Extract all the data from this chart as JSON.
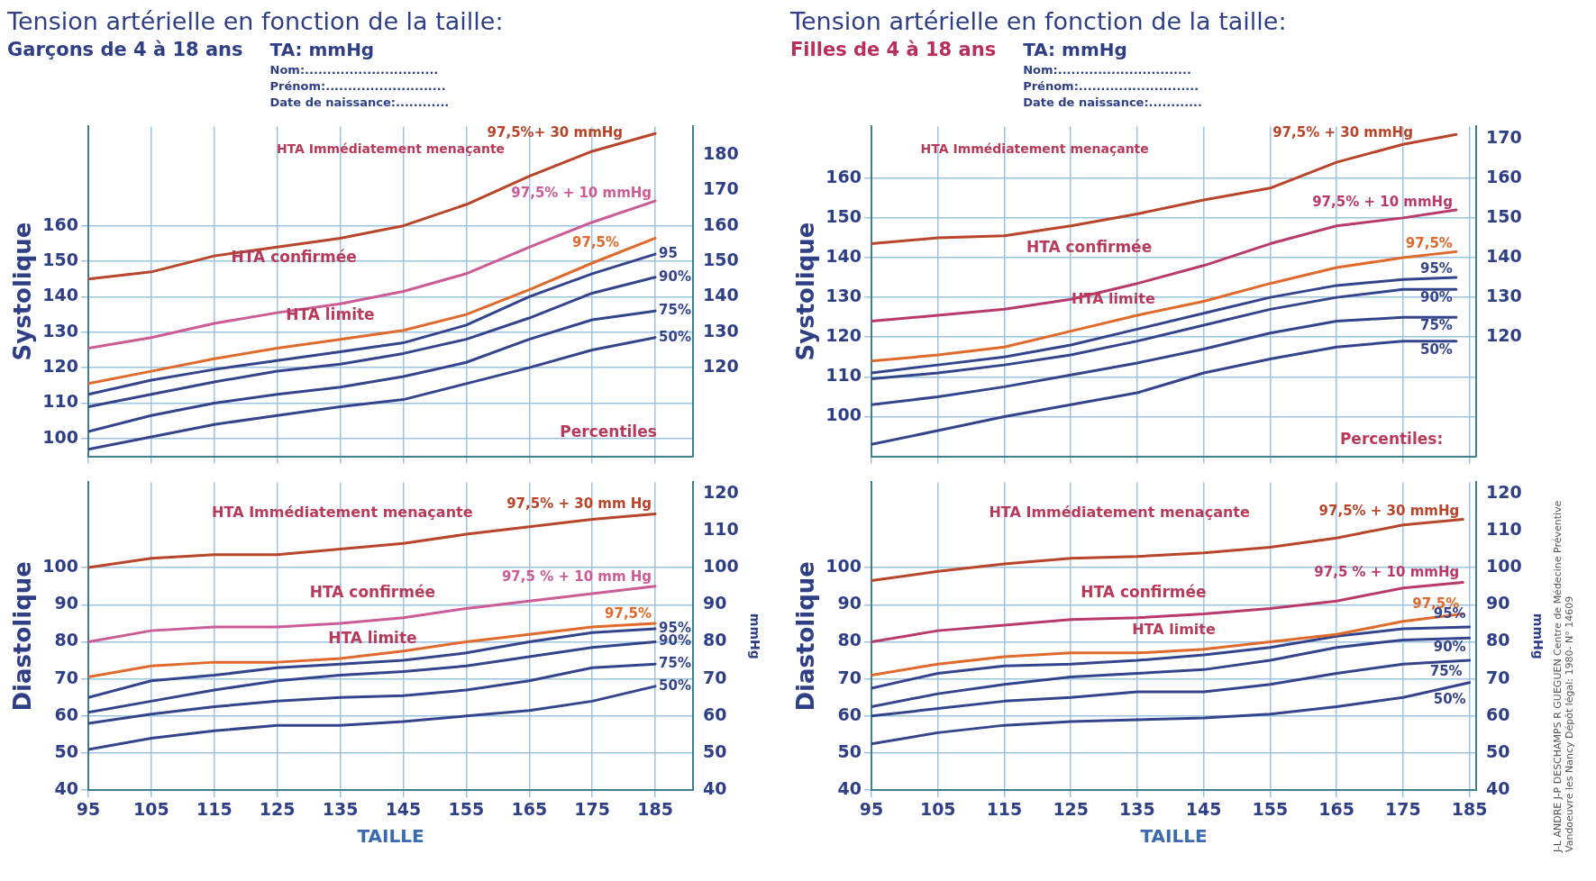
{
  "chart_data": [
    {
      "type": "line",
      "title": "Tension artérielle en fonction de la taille:",
      "subtitle": "Garçons de 4 à 18 ans",
      "ylabel": "Systolique",
      "annotations": [
        "TA: mmHg",
        "Nom:..............................",
        "Prénom:...........................",
        "Date de naissance:............",
        "HTA Immédiatement menaçante",
        "HTA confirmée",
        "HTA limite",
        "Percentiles"
      ],
      "xlim": [
        95,
        191
      ],
      "xticks": [
        95,
        105,
        115,
        125,
        135,
        145,
        155,
        165,
        175,
        185
      ],
      "ylim": [
        95,
        188
      ],
      "yticks": [
        100,
        110,
        120,
        130,
        140,
        150,
        160
      ],
      "y2lim": [
        95,
        188
      ],
      "y2ticks": [
        120,
        130,
        140,
        150,
        160,
        170,
        180
      ],
      "tick_labels": "y",
      "grid": true,
      "legend": false,
      "marker": "none",
      "series": [
        {
          "name": "97,5%+ 30 mmHg",
          "color": "#b8452a",
          "x": [
            95,
            105,
            115,
            125,
            135,
            145,
            155,
            165,
            175,
            185
          ],
          "values": [
            145,
            147,
            151.5,
            154,
            156.5,
            160,
            166,
            174,
            181,
            186
          ]
        },
        {
          "name": "97,5% + 10 mmHg",
          "color": "#cc5c96",
          "x": [
            95,
            105,
            115,
            125,
            135,
            145,
            155,
            165,
            175,
            185
          ],
          "values": [
            125.5,
            128.5,
            132.5,
            135.5,
            138,
            141.5,
            146.5,
            154,
            161,
            167
          ]
        },
        {
          "name": "97,5%",
          "color": "#e06a2c",
          "x": [
            95,
            105,
            115,
            125,
            135,
            145,
            155,
            165,
            175,
            185
          ],
          "values": [
            115.5,
            119,
            122.5,
            125.5,
            128,
            130.5,
            135,
            142,
            149.5,
            156.5
          ]
        },
        {
          "name": "95",
          "color": "#34448c",
          "x": [
            95,
            105,
            115,
            125,
            135,
            145,
            155,
            165,
            175,
            185
          ],
          "values": [
            112.5,
            116.5,
            119.5,
            122,
            124.5,
            127,
            132,
            140,
            146.5,
            152
          ]
        },
        {
          "name": "90%",
          "color": "#34448c",
          "x": [
            95,
            105,
            115,
            125,
            135,
            145,
            155,
            165,
            175,
            185
          ],
          "values": [
            109,
            112.5,
            116,
            119,
            121,
            124,
            128,
            134,
            141,
            145.5
          ]
        },
        {
          "name": "75%",
          "color": "#34448c",
          "x": [
            95,
            105,
            115,
            125,
            135,
            145,
            155,
            165,
            175,
            185
          ],
          "values": [
            102,
            106.5,
            110,
            112.5,
            114.5,
            117.5,
            121.5,
            128,
            133.5,
            136
          ]
        },
        {
          "name": "50%",
          "color": "#34448c",
          "x": [
            95,
            105,
            115,
            125,
            135,
            145,
            155,
            165,
            175,
            185
          ],
          "values": [
            97,
            100.5,
            104,
            106.5,
            109,
            111,
            115.5,
            120,
            125,
            128.5
          ]
        }
      ]
    },
    {
      "type": "line",
      "xlabel": "TAILLE",
      "ylabel": "Diastolique",
      "y2label": "mmHg",
      "annotations": [
        "HTA Immédiatement menaçante",
        "HTA confirmée",
        "HTA limite"
      ],
      "xlim": [
        95,
        191
      ],
      "xticks": [
        95,
        105,
        115,
        125,
        135,
        145,
        155,
        165,
        175,
        185
      ],
      "ylim": [
        40,
        123
      ],
      "yticks": [
        40,
        50,
        60,
        70,
        80,
        90,
        100
      ],
      "y2lim": [
        40,
        123
      ],
      "y2ticks": [
        40,
        50,
        60,
        70,
        80,
        90,
        100,
        110,
        120
      ],
      "grid": true,
      "legend": false,
      "marker": "none",
      "series": [
        {
          "name": "97,5% + 30 mm Hg",
          "color": "#b8452a",
          "x": [
            95,
            105,
            115,
            125,
            135,
            145,
            155,
            165,
            175,
            185
          ],
          "values": [
            100,
            102.5,
            103.5,
            103.5,
            105,
            106.5,
            109,
            111,
            113,
            114.5
          ]
        },
        {
          "name": "97,5 % + 10 mm Hg",
          "color": "#cc5c96",
          "x": [
            95,
            105,
            115,
            125,
            135,
            145,
            155,
            165,
            175,
            185
          ],
          "values": [
            80,
            83,
            84,
            84,
            85,
            86.5,
            89,
            91,
            93,
            95
          ]
        },
        {
          "name": "97,5%",
          "color": "#e06a2c",
          "x": [
            95,
            105,
            115,
            125,
            135,
            145,
            155,
            165,
            175,
            185
          ],
          "values": [
            70.5,
            73.5,
            74.5,
            74.5,
            75.5,
            77.5,
            80,
            82,
            84,
            85
          ]
        },
        {
          "name": "95%",
          "color": "#34448c",
          "x": [
            95,
            105,
            115,
            125,
            135,
            145,
            155,
            165,
            175,
            185
          ],
          "values": [
            65,
            69.5,
            71,
            73,
            74,
            75,
            77,
            80,
            82.5,
            83.5
          ]
        },
        {
          "name": "90%",
          "color": "#34448c",
          "x": [
            95,
            105,
            115,
            125,
            135,
            145,
            155,
            165,
            175,
            185
          ],
          "values": [
            61,
            64,
            67,
            69.5,
            71,
            72,
            73.5,
            76,
            78.5,
            80
          ]
        },
        {
          "name": "75%",
          "color": "#34448c",
          "x": [
            95,
            105,
            115,
            125,
            135,
            145,
            155,
            165,
            175,
            185
          ],
          "values": [
            58,
            60.5,
            62.5,
            64,
            65,
            65.5,
            67,
            69.5,
            73,
            74
          ]
        },
        {
          "name": "50%",
          "color": "#34448c",
          "x": [
            95,
            105,
            115,
            125,
            135,
            145,
            155,
            165,
            175,
            185
          ],
          "values": [
            51,
            54,
            56,
            57.5,
            57.5,
            58.5,
            60,
            61.5,
            64,
            68
          ]
        }
      ]
    },
    {
      "type": "line",
      "title": "Tension artérielle en fonction de la taille:",
      "subtitle": "Filles de 4 à 18 ans",
      "ylabel": "Systolique",
      "annotations": [
        "TA: mmHg",
        "Nom:..............................",
        "Prénom:...........................",
        "Date de naissance:............",
        "HTA Immédiatement menaçante",
        "HTA confirmée",
        "HTA limite",
        "Percentiles:"
      ],
      "xlim": [
        95,
        186
      ],
      "xticks": [
        95,
        105,
        115,
        125,
        135,
        145,
        155,
        165,
        175,
        185
      ],
      "ylim": [
        90,
        173
      ],
      "yticks": [
        100,
        110,
        120,
        130,
        140,
        150,
        160
      ],
      "y2lim": [
        90,
        173
      ],
      "y2ticks": [
        120,
        130,
        140,
        150,
        160,
        170
      ],
      "tick_labels": "y",
      "grid": true,
      "legend": false,
      "marker": "none",
      "series": [
        {
          "name": "97,5% + 30 mmHg",
          "color": "#b8452a",
          "x": [
            95,
            105,
            115,
            125,
            135,
            145,
            155,
            165,
            175,
            183
          ],
          "values": [
            143.5,
            145,
            145.5,
            148,
            151,
            154.5,
            157.5,
            164,
            168.5,
            171
          ]
        },
        {
          "name": "97,5% + 10 mmHg",
          "color": "#b83a6a",
          "x": [
            95,
            105,
            115,
            125,
            135,
            145,
            155,
            165,
            175,
            183
          ],
          "values": [
            124,
            125.5,
            127,
            129.5,
            133.5,
            138,
            143.5,
            148,
            150,
            152
          ]
        },
        {
          "name": "97,5%",
          "color": "#e06a2c",
          "x": [
            95,
            105,
            115,
            125,
            135,
            145,
            155,
            165,
            175,
            183
          ],
          "values": [
            114,
            115.5,
            117.5,
            121.5,
            125.5,
            129,
            133.5,
            137.5,
            140,
            141.5
          ]
        },
        {
          "name": "95%",
          "color": "#34448c",
          "x": [
            95,
            105,
            115,
            125,
            135,
            145,
            155,
            165,
            175,
            183
          ],
          "values": [
            111,
            113,
            115,
            118,
            122,
            126,
            130,
            133,
            134.5,
            135
          ]
        },
        {
          "name": "90%",
          "color": "#34448c",
          "x": [
            95,
            105,
            115,
            125,
            135,
            145,
            155,
            165,
            175,
            183
          ],
          "values": [
            109.5,
            111,
            113,
            115.5,
            119,
            123,
            127,
            130,
            132,
            132
          ]
        },
        {
          "name": "75%",
          "color": "#34448c",
          "x": [
            95,
            105,
            115,
            125,
            135,
            145,
            155,
            165,
            175,
            183
          ],
          "values": [
            103,
            105,
            107.5,
            110.5,
            113.5,
            117,
            121,
            124,
            125,
            125
          ]
        },
        {
          "name": "50%",
          "color": "#34448c",
          "x": [
            95,
            105,
            115,
            125,
            135,
            145,
            155,
            165,
            175,
            183
          ],
          "values": [
            93,
            96.5,
            100,
            103,
            106,
            111,
            114.5,
            117.5,
            119,
            119
          ]
        }
      ]
    },
    {
      "type": "line",
      "xlabel": "TAILLE",
      "ylabel": "Diastolique",
      "y2label": "mmHg",
      "annotations": [
        "HTA Immédiatement menaçante",
        "HTA confirmée",
        "HTA limite",
        "J-L ANDRE J-P DESCHAMPS R GUEGUEN  Centre de Médecine Préventive  Vandoeuvre les Nancy  Dépôt légal: 1980- N° 14609"
      ],
      "xlim": [
        95,
        186
      ],
      "xticks": [
        95,
        105,
        115,
        125,
        135,
        145,
        155,
        165,
        175,
        185
      ],
      "ylim": [
        40,
        123
      ],
      "yticks": [
        40,
        50,
        60,
        70,
        80,
        90,
        100
      ],
      "y2lim": [
        40,
        123
      ],
      "y2ticks": [
        40,
        50,
        60,
        70,
        80,
        90,
        100,
        110,
        120
      ],
      "grid": true,
      "legend": false,
      "marker": "none",
      "series": [
        {
          "name": "97,5% + 30 mmHg",
          "color": "#b8452a",
          "x": [
            95,
            105,
            115,
            125,
            135,
            145,
            155,
            165,
            175,
            184
          ],
          "values": [
            96.5,
            99,
            101,
            102.5,
            103,
            104,
            105.5,
            108,
            111.5,
            113
          ]
        },
        {
          "name": "97,5 % + 10 mmHg",
          "color": "#b83a6a",
          "x": [
            95,
            105,
            115,
            125,
            135,
            145,
            155,
            165,
            175,
            184
          ],
          "values": [
            80,
            83,
            84.5,
            86,
            86.5,
            87.5,
            89,
            91,
            94.5,
            96
          ]
        },
        {
          "name": "97,5%",
          "color": "#e06a2c",
          "x": [
            95,
            105,
            115,
            125,
            135,
            145,
            155,
            165,
            175,
            184
          ],
          "values": [
            71,
            74,
            76,
            77,
            77,
            78,
            80,
            82,
            85.5,
            87.5
          ]
        },
        {
          "name": "95%",
          "color": "#34448c",
          "x": [
            95,
            105,
            115,
            125,
            135,
            145,
            155,
            165,
            175,
            185
          ],
          "values": [
            67.5,
            71.5,
            73.5,
            74,
            75,
            76.5,
            78.5,
            81.5,
            83.5,
            84
          ]
        },
        {
          "name": "90%",
          "color": "#34448c",
          "x": [
            95,
            105,
            115,
            125,
            135,
            145,
            155,
            165,
            175,
            185
          ],
          "values": [
            62.5,
            66,
            68.5,
            70.5,
            71.5,
            72.5,
            75,
            78.5,
            80.5,
            81
          ]
        },
        {
          "name": "75%",
          "color": "#34448c",
          "x": [
            95,
            105,
            115,
            125,
            135,
            145,
            155,
            165,
            175,
            185
          ],
          "values": [
            60,
            62,
            64,
            65,
            66.5,
            66.5,
            68.5,
            71.5,
            74,
            75
          ]
        },
        {
          "name": "50%",
          "color": "#34448c",
          "x": [
            95,
            105,
            115,
            125,
            135,
            145,
            155,
            165,
            175,
            185
          ],
          "values": [
            52.5,
            55.5,
            57.5,
            58.5,
            59,
            59.5,
            60.5,
            62.5,
            65,
            69
          ]
        }
      ]
    }
  ]
}
